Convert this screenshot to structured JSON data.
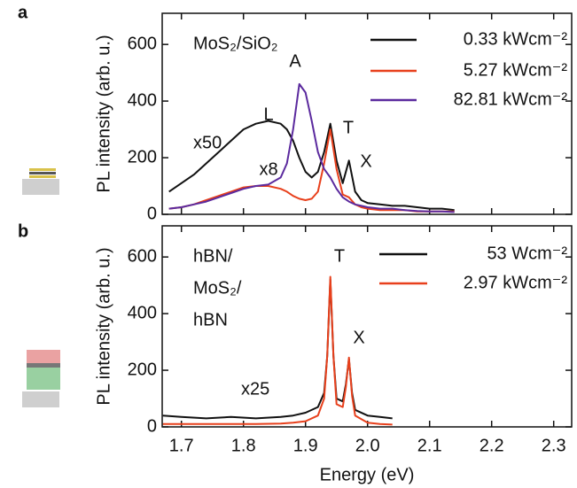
{
  "chart_data": [
    {
      "type": "line",
      "panel_label": "a",
      "ylabel": "PL intensity (arb. u.)",
      "xlim": [
        1.669,
        2.329
      ],
      "ylim": [
        0,
        710
      ],
      "xticks": [
        1.7,
        1.8,
        1.9,
        2.0,
        2.1,
        2.2,
        2.3
      ],
      "yticks": [
        0,
        200,
        400,
        600
      ],
      "annotations": [
        {
          "text": "MoS₂/SiO₂"
        },
        {
          "text": "L"
        },
        {
          "text": "A",
          "color": "#5b2a9e"
        },
        {
          "text": "T"
        },
        {
          "text": "X"
        },
        {
          "text": "x50"
        },
        {
          "text": "x8",
          "color": "#e8401c"
        }
      ],
      "x": [
        1.68,
        1.7,
        1.72,
        1.74,
        1.76,
        1.78,
        1.8,
        1.82,
        1.84,
        1.86,
        1.87,
        1.88,
        1.89,
        1.9,
        1.91,
        1.92,
        1.93,
        1.94,
        1.95,
        1.96,
        1.97,
        1.98,
        1.99,
        2.0,
        2.02,
        2.04,
        2.06,
        2.08,
        2.1,
        2.12,
        2.14
      ],
      "series": [
        {
          "name": "0.33 kWcm⁻²",
          "color": "#111111",
          "values": [
            80,
            110,
            140,
            180,
            220,
            260,
            300,
            320,
            330,
            320,
            300,
            260,
            200,
            150,
            130,
            150,
            220,
            320,
            190,
            110,
            190,
            80,
            50,
            40,
            35,
            30,
            30,
            25,
            20,
            20,
            15
          ]
        },
        {
          "name": "5.27 kWcm⁻²",
          "color": "#e8401c",
          "values": [
            20,
            25,
            35,
            50,
            65,
            80,
            95,
            100,
            100,
            90,
            80,
            65,
            55,
            50,
            55,
            80,
            180,
            300,
            160,
            70,
            60,
            35,
            25,
            20,
            15,
            15,
            15,
            10,
            10,
            10,
            10
          ]
        },
        {
          "name": "82.81 kWcm⁻²",
          "color": "#5b2a9e",
          "values": [
            20,
            25,
            35,
            45,
            60,
            75,
            90,
            100,
            105,
            130,
            180,
            300,
            460,
            430,
            330,
            220,
            160,
            130,
            90,
            60,
            45,
            35,
            30,
            25,
            20,
            20,
            15,
            12,
            10,
            10,
            8
          ]
        }
      ]
    },
    {
      "type": "line",
      "panel_label": "b",
      "ylabel": "PL intensity (arb. u.)",
      "xlabel": "Energy (eV)",
      "xlim": [
        1.669,
        2.329
      ],
      "ylim": [
        0,
        710
      ],
      "xticks": [
        1.7,
        1.8,
        1.9,
        {
          "value": 2.0,
          "label": "2.0"
        },
        2.1,
        2.2,
        2.3
      ],
      "yticks": [
        0,
        200,
        400,
        600
      ],
      "annotations": [
        {
          "text": "hBN/"
        },
        {
          "text": "MoS₂/"
        },
        {
          "text": "hBN"
        },
        {
          "text": "T"
        },
        {
          "text": "X"
        },
        {
          "text": "x25"
        }
      ],
      "x": [
        1.67,
        1.7,
        1.74,
        1.78,
        1.82,
        1.86,
        1.88,
        1.9,
        1.92,
        1.93,
        1.935,
        1.94,
        1.945,
        1.95,
        1.96,
        1.965,
        1.97,
        1.975,
        1.98,
        2.0,
        2.02,
        2.04
      ],
      "series": [
        {
          "name": "53 Wcm⁻²",
          "color": "#111111",
          "values": [
            40,
            35,
            30,
            35,
            30,
            35,
            40,
            50,
            70,
            120,
            250,
            520,
            250,
            100,
            90,
            150,
            240,
            120,
            60,
            40,
            35,
            30
          ]
        },
        {
          "name": "2.97 kWcm⁻²",
          "color": "#e8401c",
          "values": [
            10,
            10,
            10,
            10,
            10,
            12,
            15,
            20,
            40,
            100,
            250,
            530,
            250,
            80,
            70,
            140,
            245,
            110,
            40,
            15,
            10,
            8
          ]
        }
      ]
    }
  ]
}
